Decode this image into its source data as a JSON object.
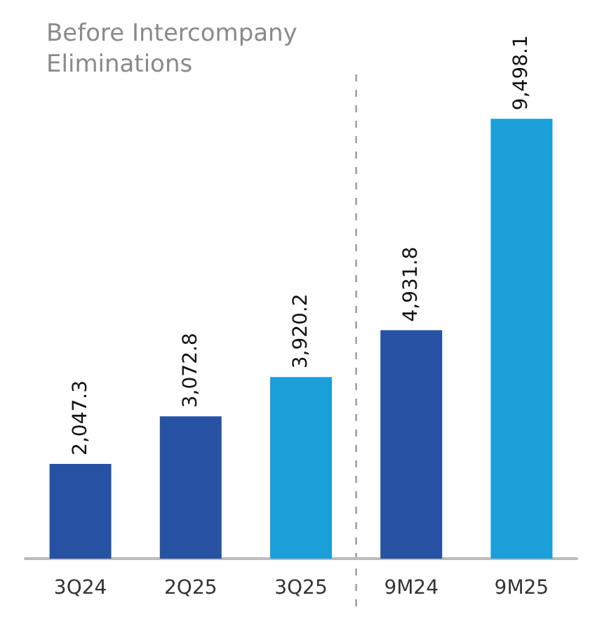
{
  "chart_data": {
    "type": "bar",
    "title": "Before Intercompany\nEliminations",
    "categories": [
      "3Q24",
      "2Q25",
      "3Q25",
      "9M24",
      "9M25"
    ],
    "values": [
      2047.3,
      3072.8,
      3920.2,
      4931.8,
      9498.1
    ],
    "colors": [
      "#2752a3",
      "#2752a3",
      "#1a9fd9",
      "#2752a3",
      "#1a9fd9"
    ],
    "data_labels": true,
    "value_labels": [
      "2,047.3",
      "3,072.8",
      "3,920.2",
      "4,931.8",
      "9,498.1"
    ],
    "grid": false
  }
}
